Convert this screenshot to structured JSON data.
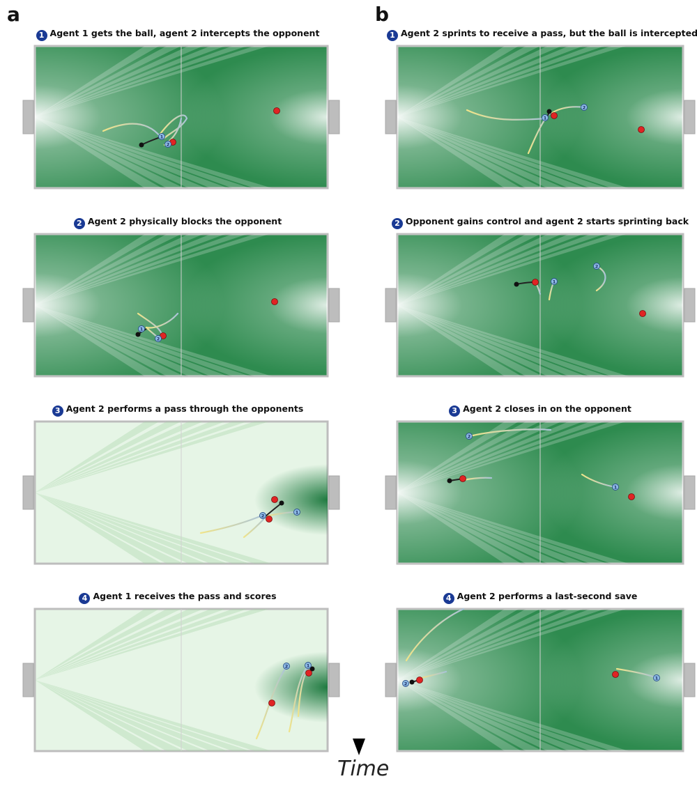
{
  "panel_a_letter": "a",
  "panel_b_letter": "b",
  "time_label": "Time",
  "colors": {
    "caption_badge": "#1a3a94",
    "agent_marker": "#8fbde6",
    "opponent_marker": "#e02424",
    "ball": "#111111",
    "trail_start": "#f0e48a",
    "trail_end": "#a9c3d8",
    "field_dark": "#2e8b4f",
    "field_light": "#e6f5e6",
    "goal": "#bdbdbd",
    "time_arrow": "#111111"
  },
  "panels": {
    "a": [
      {
        "num": "1",
        "caption": "Agent 1 gets the ball, agent 2 intercepts the opponent",
        "agent1": "1",
        "agent2": "2"
      },
      {
        "num": "2",
        "caption": "Agent 2 physically blocks the opponent",
        "agent1": "1",
        "agent2": "2"
      },
      {
        "num": "3",
        "caption": "Agent 2 performs a pass through the opponents",
        "agent1": "1",
        "agent2": "2"
      },
      {
        "num": "4",
        "caption": "Agent 1 receives the pass and scores",
        "agent1": "1",
        "agent2": "2"
      }
    ],
    "b": [
      {
        "num": "1",
        "caption": "Agent 2 sprints to receive a pass, but the ball is intercepted",
        "agent1": "1",
        "agent2": "2"
      },
      {
        "num": "2",
        "caption": "Opponent gains control and agent 2 starts sprinting back",
        "agent1": "1",
        "agent2": "2"
      },
      {
        "num": "3",
        "caption": "Agent 2 closes in on the opponent",
        "agent1": "1",
        "agent2": "2"
      },
      {
        "num": "4",
        "caption": "Agent 2 performs a last-second save",
        "agent1": "1",
        "agent2": "2"
      }
    ]
  }
}
